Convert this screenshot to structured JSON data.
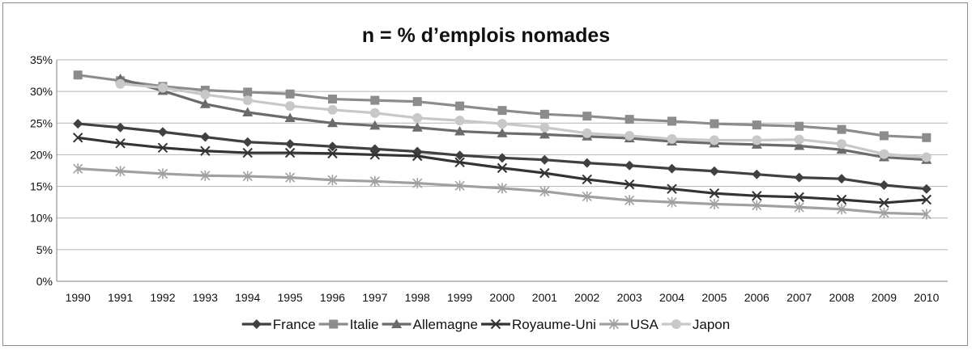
{
  "chart_data": {
    "type": "line",
    "title": "n = % d’emplois nomades",
    "xlabel": "",
    "ylabel": "",
    "ylim": [
      0,
      35
    ],
    "y_ticks": [
      "0%",
      "5%",
      "10%",
      "15%",
      "20%",
      "25%",
      "30%",
      "35%"
    ],
    "y_tick_values": [
      0,
      5,
      10,
      15,
      20,
      25,
      30,
      35
    ],
    "grid": "horizontal",
    "legend": "bottom",
    "categories": [
      "1990",
      "1991",
      "1992",
      "1993",
      "1994",
      "1995",
      "1996",
      "1997",
      "1998",
      "1999",
      "2000",
      "2001",
      "2002",
      "2003",
      "2004",
      "2005",
      "2006",
      "2007",
      "2008",
      "2009",
      "2010"
    ],
    "series": [
      {
        "name": "France",
        "marker": "diamond",
        "color": "#404040",
        "values": [
          24.9,
          24.3,
          23.6,
          22.8,
          22.0,
          21.7,
          21.3,
          20.9,
          20.5,
          19.9,
          19.5,
          19.2,
          18.7,
          18.3,
          17.8,
          17.4,
          16.9,
          16.4,
          16.2,
          15.2,
          14.6
        ]
      },
      {
        "name": "Italie",
        "marker": "square",
        "color": "#8c8c8c",
        "values": [
          32.6,
          31.7,
          30.8,
          30.2,
          29.9,
          29.6,
          28.8,
          28.6,
          28.4,
          27.7,
          27.0,
          26.4,
          26.1,
          25.6,
          25.3,
          24.9,
          24.7,
          24.5,
          24.0,
          23.0,
          22.7
        ]
      },
      {
        "name": "Allemagne",
        "marker": "triangle",
        "color": "#6b6b6b",
        "values": [
          null,
          32.0,
          30.1,
          28.0,
          26.7,
          25.8,
          25.0,
          24.6,
          24.3,
          23.7,
          23.4,
          23.2,
          22.9,
          22.6,
          22.1,
          21.8,
          21.6,
          21.4,
          20.8,
          19.6,
          19.2
        ]
      },
      {
        "name": "Royaume-Uni",
        "marker": "x",
        "color": "#333333",
        "values": [
          22.7,
          21.8,
          21.1,
          20.6,
          20.3,
          20.3,
          20.2,
          20.0,
          19.8,
          18.8,
          17.9,
          17.1,
          16.1,
          15.3,
          14.6,
          13.9,
          13.5,
          13.3,
          12.9,
          12.4,
          12.9
        ]
      },
      {
        "name": "USA",
        "marker": "asterisk",
        "color": "#a0a0a0",
        "values": [
          17.8,
          17.4,
          17.0,
          16.7,
          16.6,
          16.4,
          16.0,
          15.8,
          15.5,
          15.1,
          14.7,
          14.2,
          13.4,
          12.8,
          12.5,
          12.2,
          12.0,
          11.7,
          11.4,
          10.8,
          10.6
        ]
      },
      {
        "name": "Japon",
        "marker": "circle",
        "color": "#c8c8c8",
        "values": [
          null,
          31.2,
          30.6,
          29.5,
          28.6,
          27.7,
          27.1,
          26.6,
          25.8,
          25.4,
          24.9,
          24.3,
          23.4,
          23.0,
          22.5,
          22.3,
          22.3,
          22.4,
          21.7,
          20.1,
          19.6
        ]
      }
    ]
  }
}
